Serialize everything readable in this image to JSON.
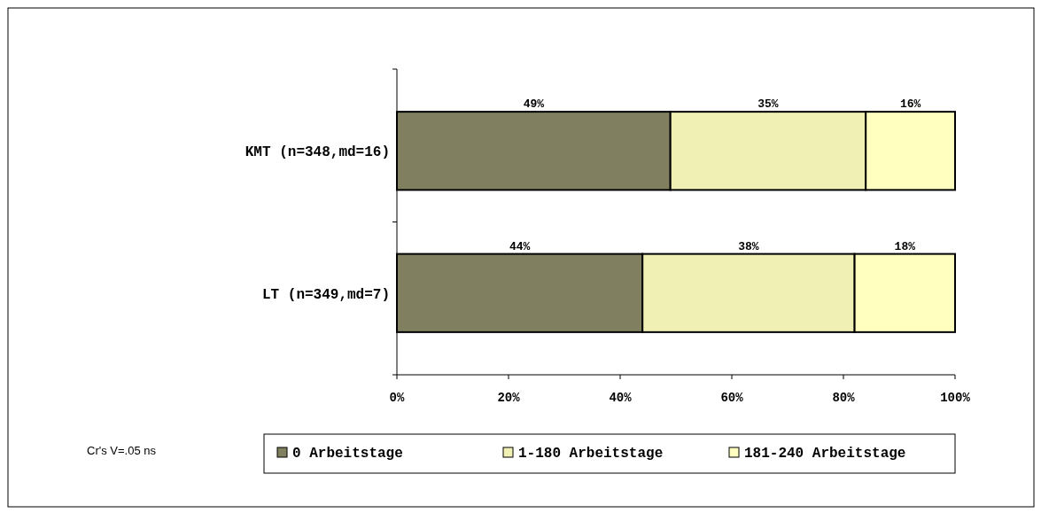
{
  "chart_data": {
    "type": "bar",
    "orientation": "horizontal",
    "stacked": true,
    "categories": [
      "KMT (n=348,md=16)",
      "LT (n=349,md=7)"
    ],
    "series": [
      {
        "name": "0 Arbeitstage",
        "color": "#808060",
        "values": [
          49,
          44
        ],
        "value_labels": [
          "49%",
          "44%"
        ]
      },
      {
        "name": "1-180 Arbeitstage",
        "color": "#f0f0b4",
        "values": [
          35,
          38
        ],
        "value_labels": [
          "35%",
          "38%"
        ]
      },
      {
        "name": "181-240 Arbeitstage",
        "color": "#ffffc0",
        "values": [
          16,
          18
        ],
        "value_labels": [
          "16%",
          "18%"
        ]
      }
    ],
    "xlim": [
      0,
      100
    ],
    "xticks": [
      {
        "value": 0,
        "label": "0%"
      },
      {
        "value": 20,
        "label": "20%"
      },
      {
        "value": 40,
        "label": "40%"
      },
      {
        "value": 60,
        "label": "60%"
      },
      {
        "value": 80,
        "label": "80%"
      },
      {
        "value": 100,
        "label": "100%"
      }
    ],
    "legend": "bottom",
    "grid": false,
    "annotations": [
      "Cr's V=.05 ns"
    ]
  }
}
